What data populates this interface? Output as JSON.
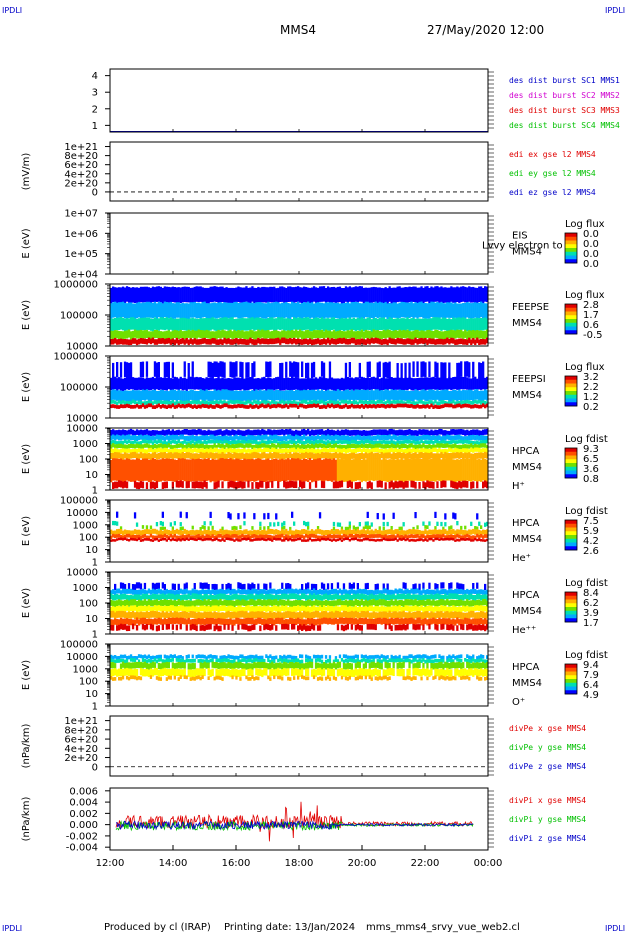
{
  "corner_label": "IPDLI",
  "header": {
    "spacecraft": "MMS4",
    "datetime": "27/May/2020 12:00"
  },
  "footer": {
    "credit": "Produced by cl (IRAP)",
    "printing": "Printing date: 13/Jan/2024",
    "filename": "mms_mms4_srvy_vue_web2.cl"
  },
  "colors": {
    "blue": "#0000c8",
    "magenta": "#d000d0",
    "red": "#e00000",
    "green": "#00c000",
    "spectrogram_scale": [
      "#0000ff",
      "#00aaff",
      "#00e0b0",
      "#70e000",
      "#ffff00",
      "#ffb000",
      "#ff5000",
      "#e00000"
    ]
  },
  "chart_data": [
    {
      "id": "p1",
      "type": "line",
      "y_ticks": [
        "1",
        "2",
        "3",
        "4"
      ],
      "ylim": [
        0.6,
        4.4
      ],
      "legend": [
        {
          "text": "des dist burst SC1 MMS1",
          "color": "#0000c8"
        },
        {
          "text": "des dist burst SC2 MMS2",
          "color": "#d000d0"
        },
        {
          "text": "des dist burst SC3 MMS3",
          "color": "#e00000"
        },
        {
          "text": "des dist burst SC4 MMS4",
          "color": "#00c000"
        }
      ]
    },
    {
      "id": "p2",
      "type": "line",
      "ylabel": "(mV/m)",
      "y_ticks": [
        "0",
        "2e+20",
        "4e+20",
        "6e+20",
        "8e+20",
        "1e+21"
      ],
      "ylim": [
        -2e+20,
        1.1e+21
      ],
      "legend": [
        {
          "text": "edi ex gse l2 MMS4",
          "color": "#e00000"
        },
        {
          "text": "edi ey gse l2 MMS4",
          "color": "#00c000"
        },
        {
          "text": "edi ez gse l2 MMS4",
          "color": "#0000c8"
        }
      ]
    },
    {
      "id": "p3",
      "type": "heatmap",
      "ylabel": "E (eV)",
      "log": true,
      "y_ticks": [
        "1e+04",
        "1e+05",
        "1e+06",
        "1e+07"
      ],
      "instrument": [
        "EIS",
        "MMS4"
      ],
      "overlay_text": "Lvvy electron to",
      "colorbar": {
        "title": "Log flux",
        "ticks": [
          "0.0",
          "0.0",
          "0.0",
          "0.0"
        ]
      }
    },
    {
      "id": "p4",
      "type": "heatmap",
      "ylabel": "E (eV)",
      "log": true,
      "y_ticks": [
        "10000",
        "100000",
        "1000000"
      ],
      "instrument": [
        "FEEPSE",
        "MMS4"
      ],
      "colorbar": {
        "title": "Log flux",
        "ticks": [
          "2.8",
          "1.7",
          "0.6",
          "-0.5"
        ]
      }
    },
    {
      "id": "p5",
      "type": "heatmap",
      "ylabel": "E (eV)",
      "log": true,
      "y_ticks": [
        "10000",
        "100000",
        "1000000"
      ],
      "instrument": [
        "FEEPSI",
        "MMS4"
      ],
      "colorbar": {
        "title": "Log flux",
        "ticks": [
          "3.2",
          "2.2",
          "1.2",
          "0.2"
        ]
      }
    },
    {
      "id": "p6",
      "type": "heatmap",
      "ylabel": "E (eV)",
      "log": true,
      "y_ticks": [
        "1",
        "10",
        "100",
        "1000",
        "10000"
      ],
      "instrument": [
        "HPCA",
        "MMS4",
        "H⁺"
      ],
      "colorbar": {
        "title": "Log fdist",
        "ticks": [
          "9.3",
          "6.5",
          "3.6",
          "0.8"
        ]
      }
    },
    {
      "id": "p7",
      "type": "heatmap",
      "ylabel": "E (eV)",
      "log": true,
      "y_ticks": [
        "1",
        "10",
        "100",
        "1000",
        "10000",
        "100000"
      ],
      "instrument": [
        "HPCA",
        "MMS4",
        "He⁺"
      ],
      "colorbar": {
        "title": "Log fdist",
        "ticks": [
          "7.5",
          "5.9",
          "4.2",
          "2.6"
        ]
      }
    },
    {
      "id": "p8",
      "type": "heatmap",
      "ylabel": "E (eV)",
      "log": true,
      "y_ticks": [
        "1",
        "10",
        "100",
        "1000",
        "10000"
      ],
      "instrument": [
        "HPCA",
        "MMS4",
        "He⁺⁺"
      ],
      "colorbar": {
        "title": "Log fdist",
        "ticks": [
          "8.4",
          "6.2",
          "3.9",
          "1.7"
        ]
      }
    },
    {
      "id": "p9",
      "type": "heatmap",
      "ylabel": "E (eV)",
      "log": true,
      "y_ticks": [
        "1",
        "10",
        "100",
        "1000",
        "10000",
        "100000"
      ],
      "instrument": [
        "HPCA",
        "MMS4",
        "O⁺"
      ],
      "colorbar": {
        "title": "Log fdist",
        "ticks": [
          "9.4",
          "7.9",
          "6.4",
          "4.9"
        ]
      }
    },
    {
      "id": "p10",
      "type": "line",
      "ylabel": "(nPa/km)",
      "y_ticks": [
        "0",
        "2e+20",
        "4e+20",
        "6e+20",
        "8e+20",
        "1e+21"
      ],
      "ylim": [
        -2e+20,
        1.1e+21
      ],
      "legend": [
        {
          "text": "divPe x gse MMS4",
          "color": "#e00000"
        },
        {
          "text": "divPe y gse MMS4",
          "color": "#00c000"
        },
        {
          "text": "divPe z gse MMS4",
          "color": "#0000c8"
        }
      ]
    },
    {
      "id": "p11",
      "type": "line",
      "ylabel": "(nPa/km)",
      "y_ticks": [
        "-0.004",
        "-0.002",
        "0.000",
        "0.002",
        "0.004",
        "0.006"
      ],
      "ylim": [
        -0.0045,
        0.0065
      ],
      "legend": [
        {
          "text": "divPi x gse MMS4",
          "color": "#e00000"
        },
        {
          "text": "divPi y gse MMS4",
          "color": "#00c000"
        },
        {
          "text": "divPi z gse MMS4",
          "color": "#0000c8"
        }
      ]
    }
  ],
  "x_axis": {
    "ticks": [
      "12:00",
      "14:00",
      "16:00",
      "18:00",
      "20:00",
      "22:00",
      "00:00"
    ]
  }
}
